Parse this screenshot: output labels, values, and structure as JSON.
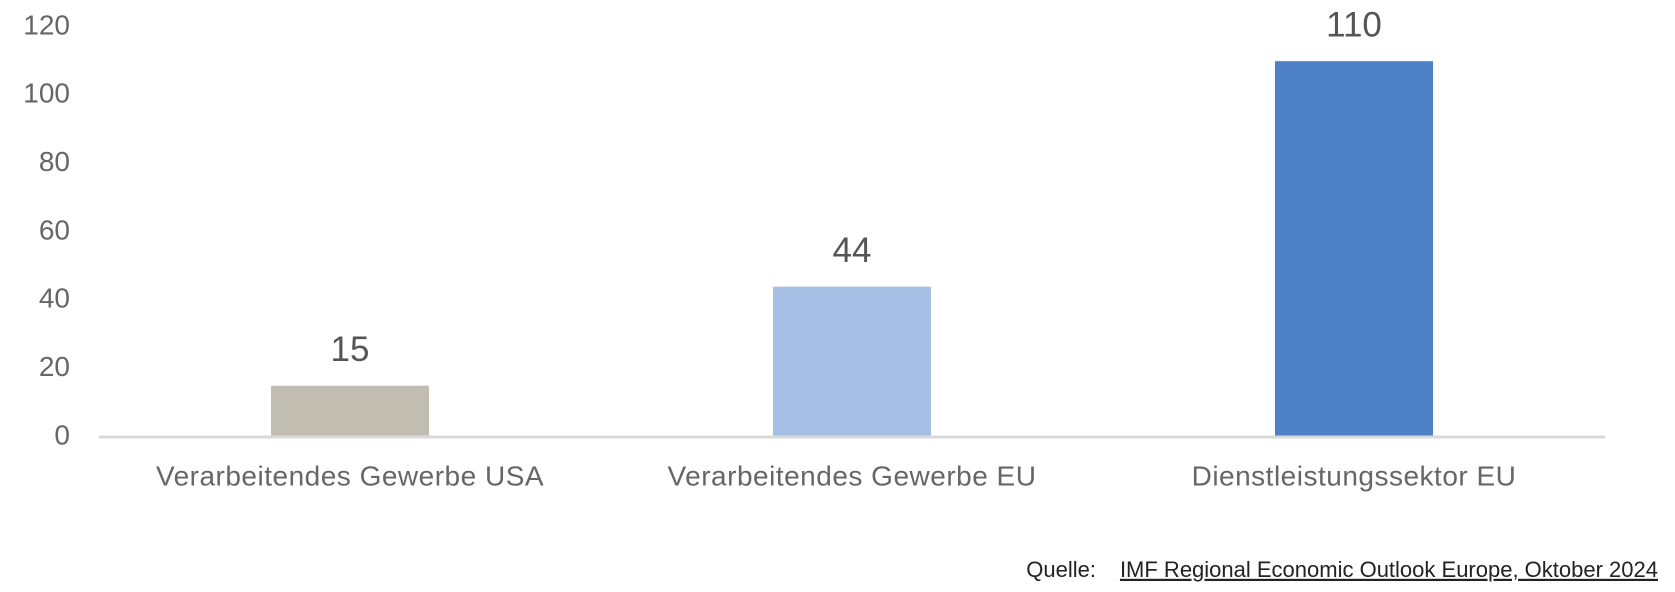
{
  "chart_data": {
    "type": "bar",
    "categories": [
      "Verarbeitendes Gewerbe USA",
      "Verarbeitendes Gewerbe EU",
      "Dienstleistungssektor EU"
    ],
    "values": [
      15,
      44,
      110
    ],
    "colors": [
      "#c2bdb1",
      "#a6bfe4",
      "#4d80c4"
    ],
    "ylim": [
      0,
      120
    ],
    "yticks": [
      0,
      20,
      40,
      60,
      80,
      100,
      120
    ],
    "grid": false,
    "source_label": "Quelle:",
    "source_text": "IMF Regional Economic Outlook Europe, Oktober 2024"
  }
}
